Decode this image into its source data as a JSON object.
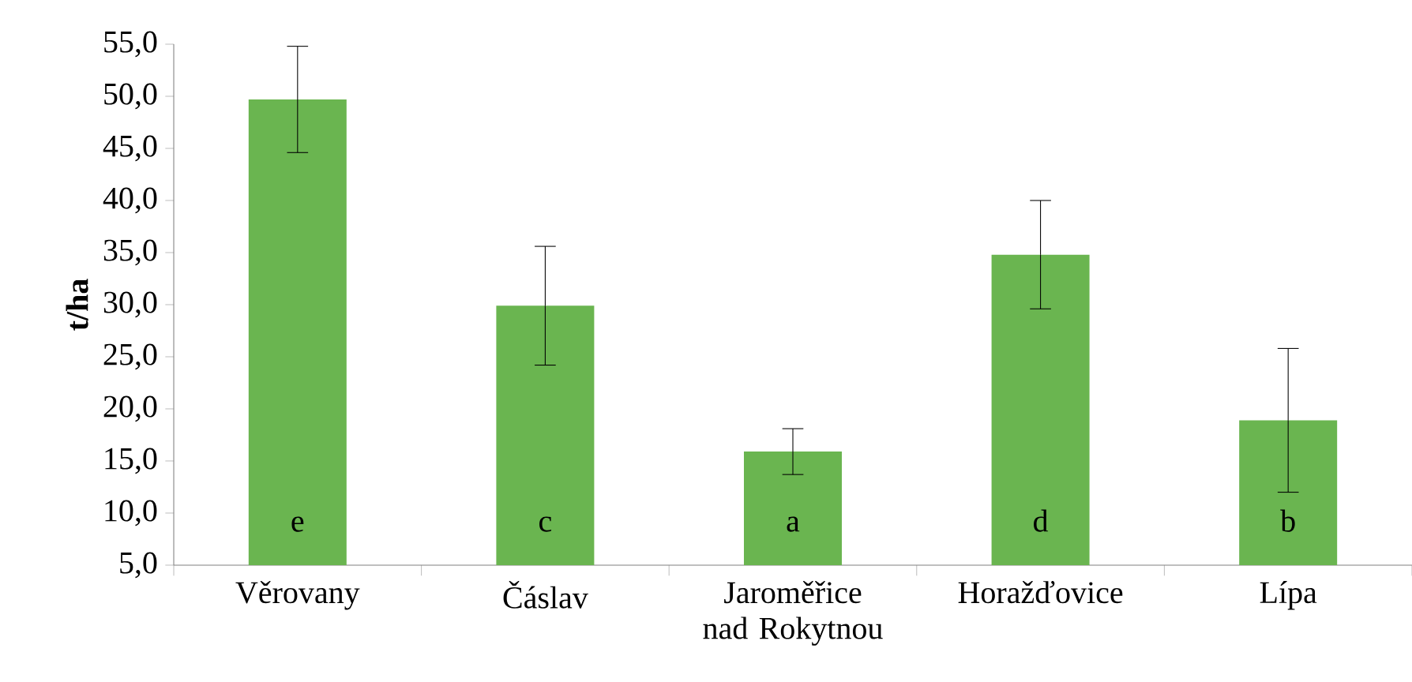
{
  "chart_data": {
    "type": "bar",
    "ylabel": "**t/ha**",
    "categories": [
      "Věrovany",
      "Čáslav",
      "Jaroměřice nad Rokytnou",
      "Horažďovice",
      "Lípa"
    ],
    "values": [
      49.7,
      29.9,
      15.9,
      34.8,
      18.9
    ],
    "errors": [
      5.1,
      5.7,
      2.2,
      5.2,
      6.9
    ],
    "color": "#6ab550",
    "ylim": [
      5,
      55
    ],
    "yticks": [
      {
        "value": 5,
        "label": "5,0"
      },
      {
        "value": 10,
        "label": "10,0"
      },
      {
        "value": 15,
        "label": "15,0"
      },
      {
        "value": 20,
        "label": "20,0"
      },
      {
        "value": 25,
        "label": "25,0"
      },
      {
        "value": 30,
        "label": "30,0"
      },
      {
        "value": 35,
        "label": "35,0"
      },
      {
        "value": 40,
        "label": "40,0"
      },
      {
        "value": 45,
        "label": "45,0"
      },
      {
        "value": 50,
        "label": "50,0"
      },
      {
        "value": 55,
        "label": "55,0"
      }
    ],
    "annotations": [
      "e",
      "c",
      "a",
      "d",
      "b"
    ]
  }
}
